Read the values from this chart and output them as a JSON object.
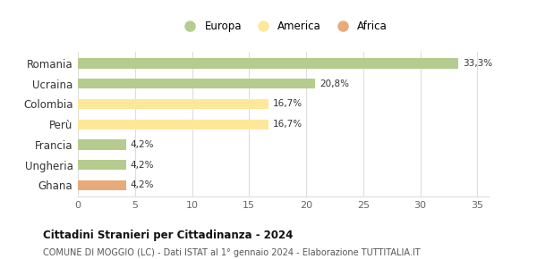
{
  "categories": [
    "Romania",
    "Ucraina",
    "Colombia",
    "Perù",
    "Francia",
    "Ungheria",
    "Ghana"
  ],
  "values": [
    33.3,
    20.8,
    16.7,
    16.7,
    4.2,
    4.2,
    4.2
  ],
  "labels": [
    "33,3%",
    "20,8%",
    "16,7%",
    "16,7%",
    "4,2%",
    "4,2%",
    "4,2%"
  ],
  "colors": [
    "#b5cc8e",
    "#b5cc8e",
    "#fde89a",
    "#fde89a",
    "#b5cc8e",
    "#b5cc8e",
    "#e8aa7a"
  ],
  "legend_items": [
    {
      "label": "Europa",
      "color": "#b5cc8e"
    },
    {
      "label": "America",
      "color": "#fde89a"
    },
    {
      "label": "Africa",
      "color": "#e8aa7a"
    }
  ],
  "xlim": [
    0,
    36
  ],
  "xticks": [
    0,
    5,
    10,
    15,
    20,
    25,
    30,
    35
  ],
  "title": "Cittadini Stranieri per Cittadinanza - 2024",
  "subtitle": "COMUNE DI MOGGIO (LC) - Dati ISTAT al 1° gennaio 2024 - Elaborazione TUTTITALIA.IT",
  "background_color": "#ffffff",
  "grid_color": "#dddddd",
  "bar_height": 0.5
}
